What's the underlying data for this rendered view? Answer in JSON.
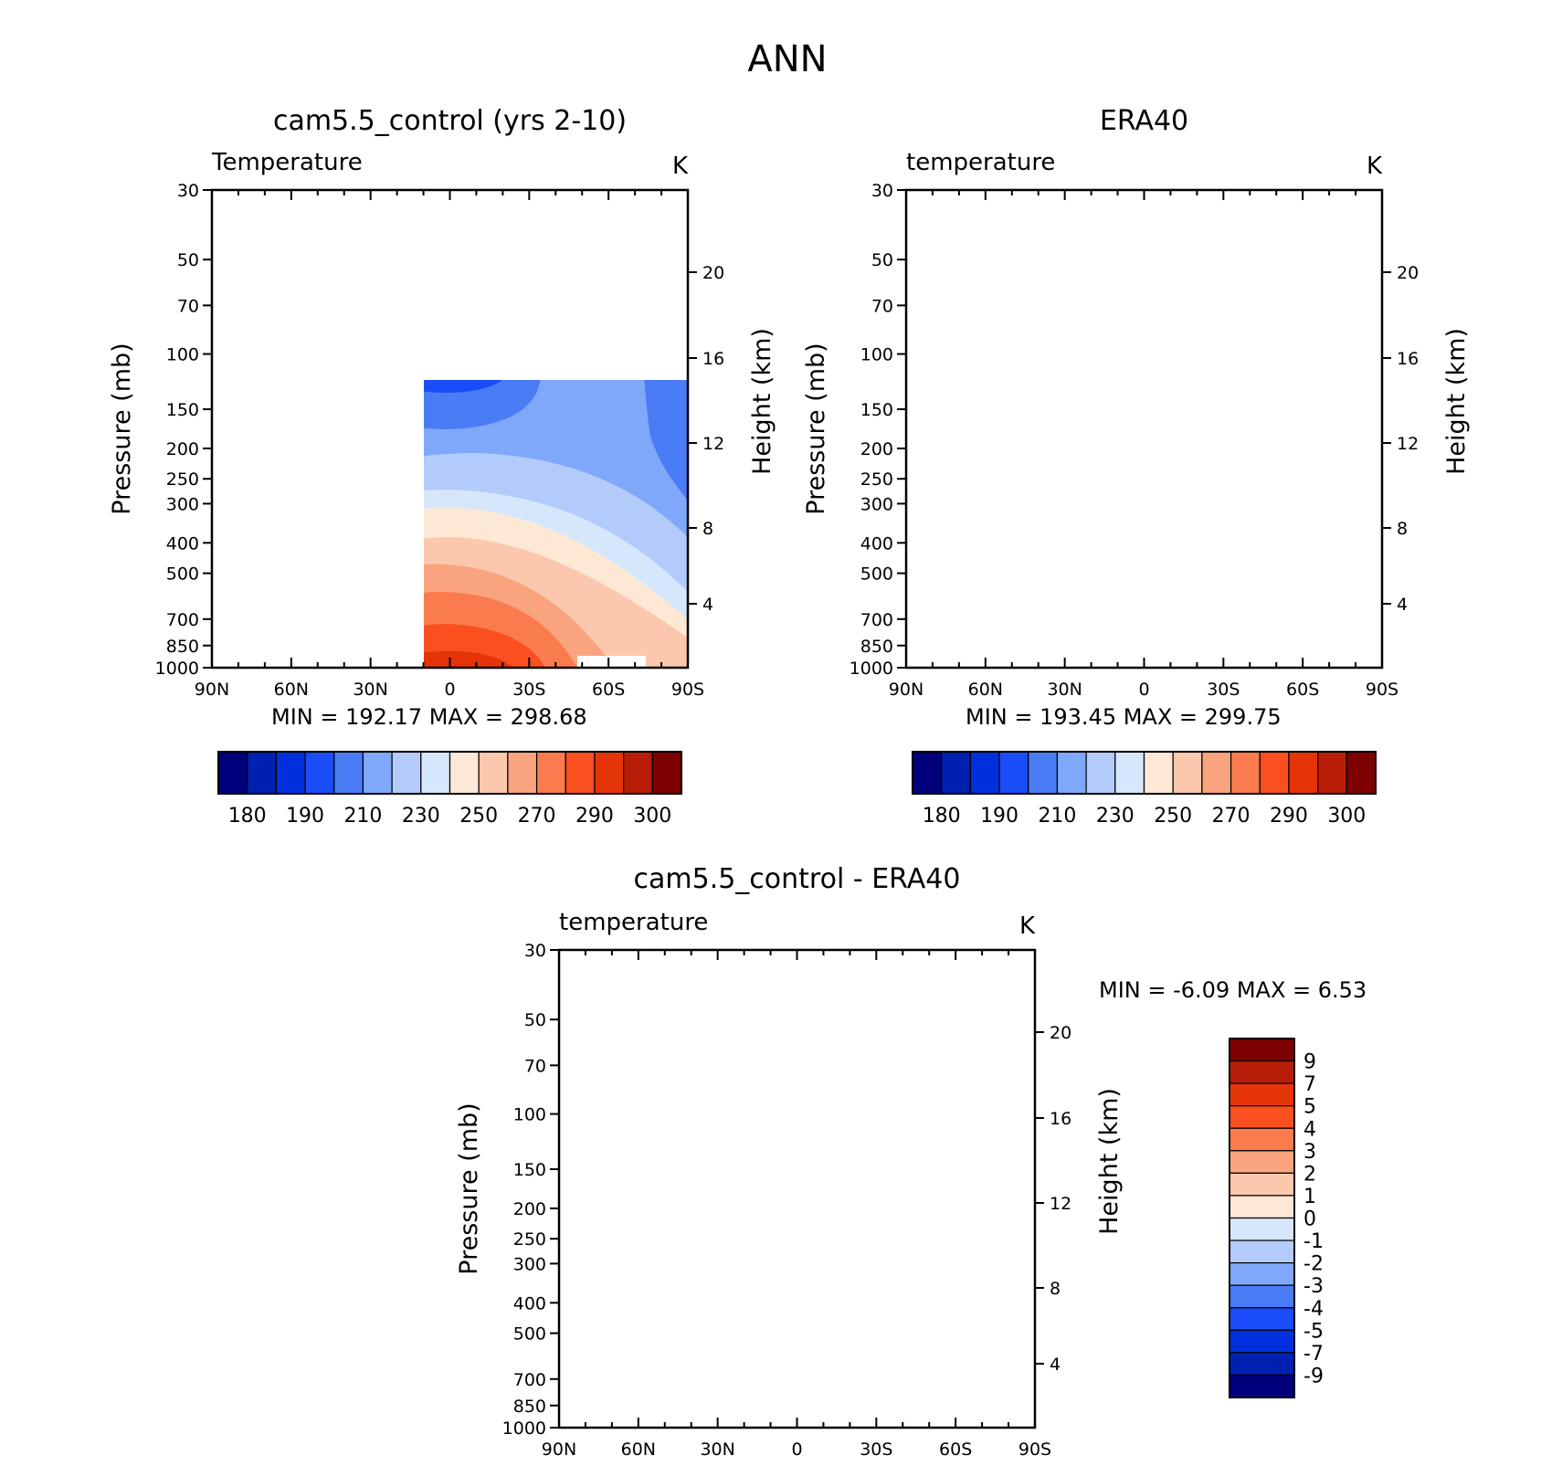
{
  "figure": {
    "title": "ANN"
  },
  "colormaps": {
    "absolute": [
      "#00007c",
      "#0020b0",
      "#0030dd",
      "#1a4cf7",
      "#4a7cf5",
      "#80a8fa",
      "#b2cbfb",
      "#d6e7fc",
      "#fde8d6",
      "#fcc8ad",
      "#faa47f",
      "#fa7c4e",
      "#fa4f1f",
      "#e63409",
      "#b81e07",
      "#7d0101"
    ],
    "difference": [
      "#00007c",
      "#0020b0",
      "#0030dd",
      "#1a4cf7",
      "#4a7cf5",
      "#80a8fa",
      "#b2cbfb",
      "#d6e7fc",
      "#fde8d6",
      "#fcc8ad",
      "#faa47f",
      "#fa7c4e",
      "#fa4f1f",
      "#e63409",
      "#b81e07",
      "#7d0101"
    ]
  },
  "chart_data": [
    {
      "type": "heatmap",
      "title": "cam5.5_control (yrs 2-10)",
      "subtitle_left": "Temperature",
      "units": "K",
      "ylabel": "Pressure (mb)",
      "ylabel_right": "Height (km)",
      "x_ticks": [
        "90N",
        "60N",
        "30N",
        "0",
        "30S",
        "60S",
        "90S"
      ],
      "x_values": [
        90,
        60,
        30,
        0,
        -30,
        -60,
        -90
      ],
      "xlim": [
        90,
        -90
      ],
      "y_ticks": [
        30,
        50,
        70,
        100,
        150,
        200,
        250,
        300,
        400,
        500,
        700,
        850,
        1000
      ],
      "ylim": [
        30,
        1000
      ],
      "yscale": "log",
      "y_right_ticks": [
        20,
        16,
        12,
        8,
        4
      ],
      "stats": {
        "min_label": "MIN",
        "min": "192.17",
        "max_label": "MAX",
        "max": "298.68"
      },
      "colorbar": {
        "orientation": "horizontal",
        "labels": [
          "180",
          "190",
          "210",
          "230",
          "250",
          "270",
          "290",
          "300"
        ]
      }
    },
    {
      "type": "heatmap",
      "title": "ERA40",
      "subtitle_left": "temperature",
      "units": "K",
      "ylabel": "Pressure (mb)",
      "ylabel_right": "Height (km)",
      "x_ticks": [
        "90N",
        "60N",
        "30N",
        "0",
        "30S",
        "60S",
        "90S"
      ],
      "x_values": [
        90,
        60,
        30,
        0,
        -30,
        -60,
        -90
      ],
      "xlim": [
        90,
        -90
      ],
      "y_ticks": [
        30,
        50,
        70,
        100,
        150,
        200,
        250,
        300,
        400,
        500,
        700,
        850,
        1000
      ],
      "ylim": [
        30,
        1000
      ],
      "yscale": "log",
      "y_right_ticks": [
        20,
        16,
        12,
        8,
        4
      ],
      "stats": {
        "min_label": "MIN",
        "min": "193.45",
        "max_label": "MAX",
        "max": "299.75"
      },
      "colorbar": {
        "orientation": "horizontal",
        "labels": [
          "180",
          "190",
          "210",
          "230",
          "250",
          "270",
          "290",
          "300"
        ]
      }
    },
    {
      "type": "heatmap",
      "title": "cam5.5_control - ERA40",
      "subtitle_left": "temperature",
      "units": "K",
      "ylabel": "Pressure (mb)",
      "ylabel_right": "Height (km)",
      "x_ticks": [
        "90N",
        "60N",
        "30N",
        "0",
        "30S",
        "60S",
        "90S"
      ],
      "x_values": [
        90,
        60,
        30,
        0,
        -30,
        -60,
        -90
      ],
      "xlim": [
        90,
        -90
      ],
      "y_ticks": [
        30,
        50,
        70,
        100,
        150,
        200,
        250,
        300,
        400,
        500,
        700,
        850,
        1000
      ],
      "ylim": [
        30,
        1000
      ],
      "yscale": "log",
      "y_right_ticks": [
        20,
        16,
        12,
        8,
        4
      ],
      "stats": {
        "min_label": "MIN",
        "min": "-6.09",
        "max_label": "MAX",
        "max": "6.53"
      },
      "colorbar": {
        "orientation": "vertical",
        "labels": [
          "9",
          "7",
          "5",
          "4",
          "3",
          "2",
          "1",
          "0",
          "-1",
          "-2",
          "-3",
          "-4",
          "-5",
          "-7",
          "-9"
        ]
      }
    }
  ]
}
